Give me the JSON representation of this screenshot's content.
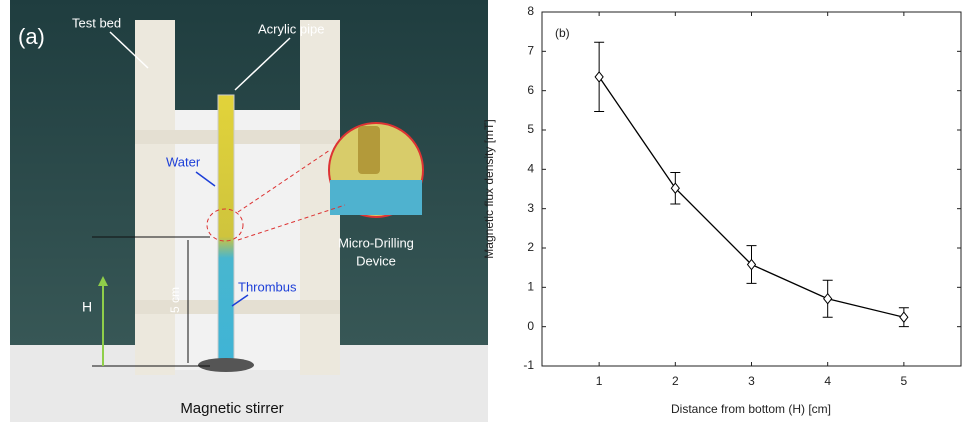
{
  "panel_a": {
    "label": "(a)",
    "test_bed": "Test bed",
    "acrylic_pipe": "Acrylic pipe",
    "water": "Water",
    "device": [
      "Micro-Drilling",
      "Device"
    ],
    "thrombus": "Thrombus",
    "height": "H",
    "distance": "5 cm",
    "stirrer": "Magnetic stirrer"
  },
  "chart_data": {
    "type": "line",
    "panel_label": "(b)",
    "x_label": "Distance from bottom (H) [cm]",
    "y_label": "Magnetic flux density [mT]",
    "x": [
      1,
      2,
      3,
      4,
      5
    ],
    "series": [
      {
        "color": "#000000",
        "marker": "diamond",
        "values": [
          6.35,
          3.52,
          1.58,
          0.71,
          0.24
        ],
        "errors": [
          0.88,
          0.4,
          0.48,
          0.47,
          0.24
        ]
      }
    ],
    "xlim": [
      0.25,
      5.75
    ],
    "xticks": [
      1,
      2,
      3,
      4,
      5
    ],
    "ylim": [
      -1,
      8
    ],
    "yticks": [
      -1,
      0,
      1,
      2,
      3,
      4,
      5,
      6,
      7,
      8
    ]
  }
}
